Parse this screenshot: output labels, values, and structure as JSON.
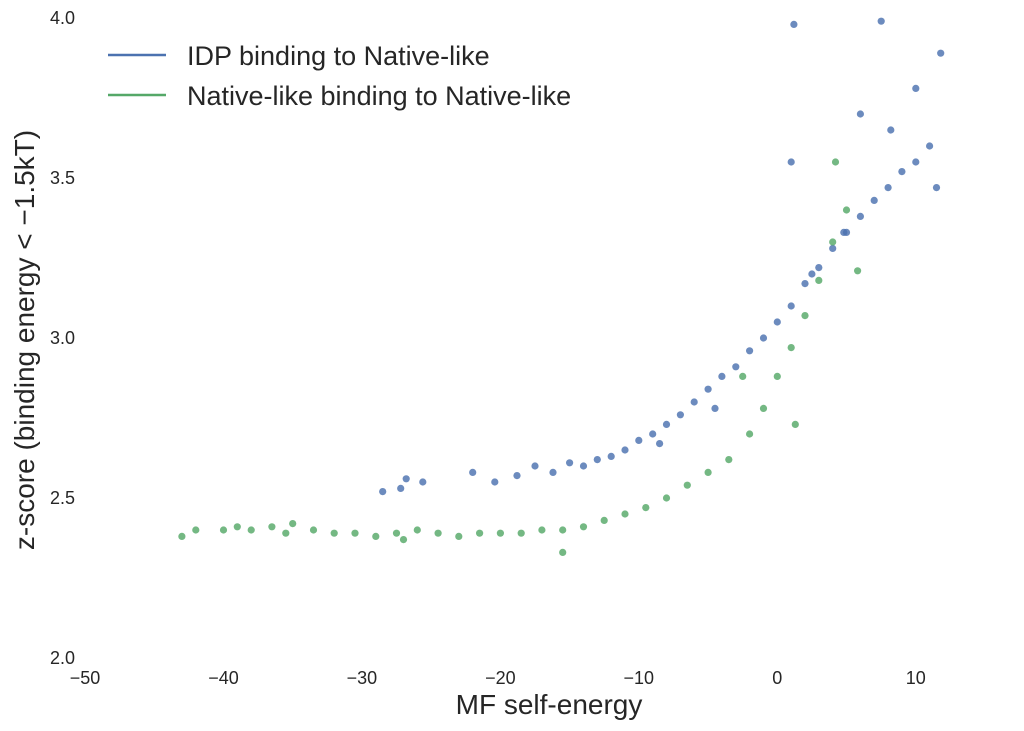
{
  "chart_data": {
    "type": "scatter",
    "xlabel": "MF self-energy",
    "ylabel": "z-score (binding energy < −1.5kT)",
    "xlim": [
      -50,
      15
    ],
    "ylim": [
      2.0,
      4.0
    ],
    "x_ticks": [
      -50,
      -40,
      -30,
      -20,
      -10,
      0,
      10
    ],
    "x_tick_labels": [
      "−50",
      "−40",
      "−30",
      "−20",
      "−10",
      "0",
      "10"
    ],
    "y_ticks": [
      2.0,
      2.5,
      3.0,
      3.5,
      4.0
    ],
    "y_tick_labels": [
      "2.0",
      "2.5",
      "3.0",
      "3.5",
      "4.0"
    ],
    "grid": false,
    "legend_position": "top-left",
    "series": [
      {
        "name": "IDP binding to Native-like",
        "color": "#4c72b0",
        "points": [
          [
            -28.5,
            2.52
          ],
          [
            -27.2,
            2.53
          ],
          [
            -26.8,
            2.56
          ],
          [
            -25.6,
            2.55
          ],
          [
            -22.0,
            2.58
          ],
          [
            -20.4,
            2.55
          ],
          [
            -18.8,
            2.57
          ],
          [
            -17.5,
            2.6
          ],
          [
            -16.2,
            2.58
          ],
          [
            -15.0,
            2.61
          ],
          [
            -14.0,
            2.6
          ],
          [
            -13.0,
            2.62
          ],
          [
            -12.0,
            2.63
          ],
          [
            -11.0,
            2.65
          ],
          [
            -10.0,
            2.68
          ],
          [
            -9.0,
            2.7
          ],
          [
            -8.0,
            2.73
          ],
          [
            -7.0,
            2.76
          ],
          [
            -6.0,
            2.8
          ],
          [
            -5.0,
            2.84
          ],
          [
            -4.0,
            2.88
          ],
          [
            -3.0,
            2.91
          ],
          [
            -2.0,
            2.96
          ],
          [
            -1.0,
            3.0
          ],
          [
            0.0,
            3.05
          ],
          [
            1.0,
            3.1
          ],
          [
            2.0,
            3.17
          ],
          [
            3.0,
            3.22
          ],
          [
            4.0,
            3.28
          ],
          [
            5.0,
            3.33
          ],
          [
            6.0,
            3.38
          ],
          [
            7.0,
            3.43
          ],
          [
            8.0,
            3.47
          ],
          [
            9.0,
            3.52
          ],
          [
            10.0,
            3.55
          ],
          [
            11.0,
            3.6
          ],
          [
            1.2,
            3.98
          ],
          [
            7.5,
            3.99
          ],
          [
            11.8,
            3.89
          ],
          [
            10.0,
            3.78
          ],
          [
            6.0,
            3.7
          ],
          [
            8.2,
            3.65
          ],
          [
            1.0,
            3.55
          ],
          [
            11.5,
            3.47
          ],
          [
            4.8,
            3.33
          ],
          [
            2.5,
            3.2
          ],
          [
            -4.5,
            2.78
          ],
          [
            -8.5,
            2.67
          ]
        ]
      },
      {
        "name": "Native-like binding to Native-like",
        "color": "#55a868",
        "points": [
          [
            -43.0,
            2.38
          ],
          [
            -42.0,
            2.4
          ],
          [
            -40.0,
            2.4
          ],
          [
            -39.0,
            2.41
          ],
          [
            -38.0,
            2.4
          ],
          [
            -36.5,
            2.41
          ],
          [
            -35.0,
            2.42
          ],
          [
            -33.5,
            2.4
          ],
          [
            -32.0,
            2.39
          ],
          [
            -30.5,
            2.39
          ],
          [
            -29.0,
            2.38
          ],
          [
            -27.5,
            2.39
          ],
          [
            -26.0,
            2.4
          ],
          [
            -24.5,
            2.39
          ],
          [
            -23.0,
            2.38
          ],
          [
            -21.5,
            2.39
          ],
          [
            -20.0,
            2.39
          ],
          [
            -18.5,
            2.39
          ],
          [
            -17.0,
            2.4
          ],
          [
            -15.5,
            2.4
          ],
          [
            -14.0,
            2.41
          ],
          [
            -12.5,
            2.43
          ],
          [
            -11.0,
            2.45
          ],
          [
            -9.5,
            2.47
          ],
          [
            -8.0,
            2.5
          ],
          [
            -6.5,
            2.54
          ],
          [
            -5.0,
            2.58
          ],
          [
            -3.5,
            2.62
          ],
          [
            -2.0,
            2.7
          ],
          [
            -1.0,
            2.78
          ],
          [
            0.0,
            2.88
          ],
          [
            1.0,
            2.97
          ],
          [
            2.0,
            3.07
          ],
          [
            3.0,
            3.18
          ],
          [
            4.0,
            3.3
          ],
          [
            5.0,
            3.4
          ],
          [
            4.2,
            3.55
          ],
          [
            1.3,
            2.73
          ],
          [
            5.8,
            3.21
          ],
          [
            -15.5,
            2.33
          ],
          [
            -27.0,
            2.37
          ],
          [
            -35.5,
            2.39
          ],
          [
            -2.5,
            2.88
          ]
        ]
      }
    ]
  }
}
